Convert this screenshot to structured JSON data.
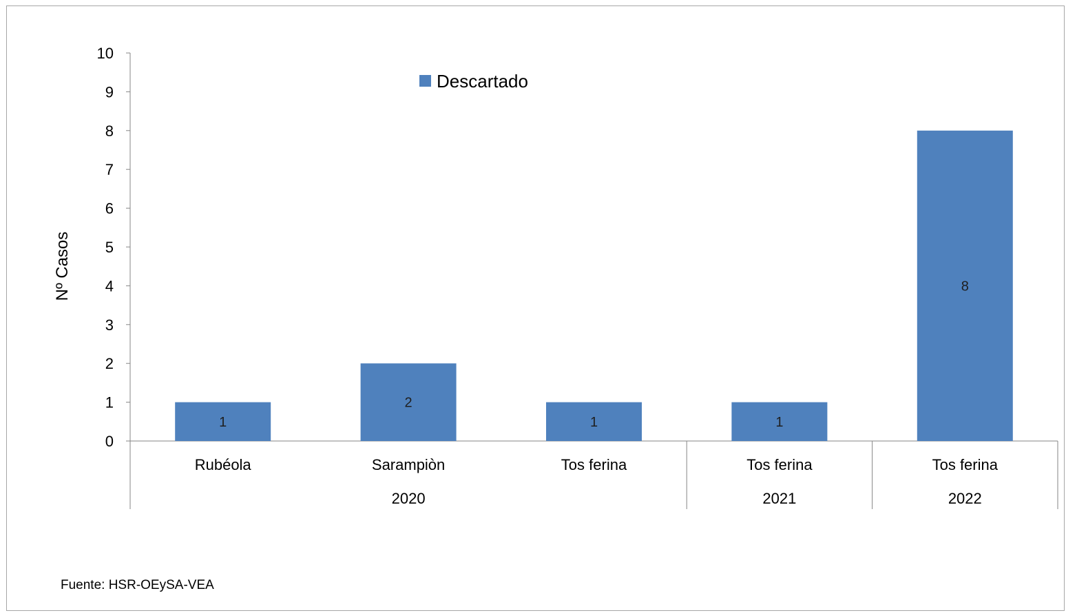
{
  "chart_data": {
    "type": "bar",
    "ylabel": "Nº Casos",
    "ylim": [
      0,
      10
    ],
    "yticks": [
      0,
      1,
      2,
      3,
      4,
      5,
      6,
      7,
      8,
      9,
      10
    ],
    "grid": false,
    "legend_position": "top-center",
    "categories": [
      "Rubéola",
      "Sarampiòn",
      "Tos ferina",
      "Tos ferina",
      "Tos ferina"
    ],
    "groups": [
      {
        "label": "2020",
        "categories": [
          0,
          1,
          2
        ]
      },
      {
        "label": "2021",
        "categories": [
          3
        ]
      },
      {
        "label": "2022",
        "categories": [
          4
        ]
      }
    ],
    "series": [
      {
        "name": "Descartado",
        "color": "#4f81bd",
        "values": [
          1,
          2,
          1,
          1,
          8
        ]
      }
    ],
    "data_labels": [
      "1",
      "2",
      "1",
      "1",
      "8"
    ]
  },
  "footer": {
    "source": "Fuente: HSR-OEySA-VEA"
  }
}
